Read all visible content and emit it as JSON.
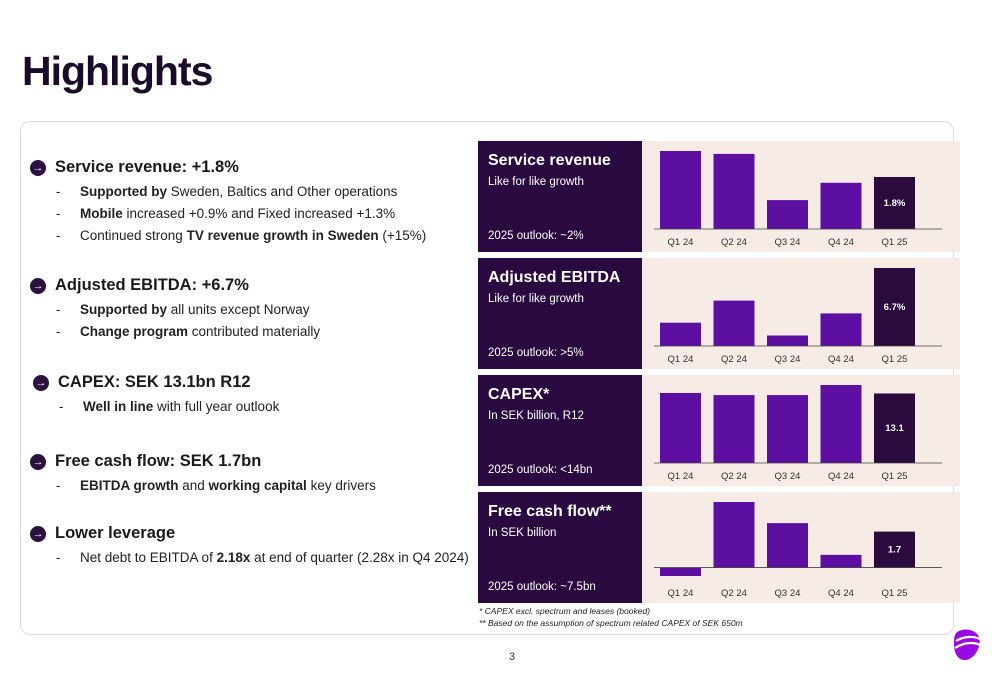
{
  "page": {
    "title": "Highlights",
    "page_number": "3"
  },
  "bullets": [
    {
      "head": "Service revenue: +1.8%",
      "subs": [
        {
          "bold": "Supported by",
          "rest": " Sweden, Baltics and Other operations"
        },
        {
          "bold": "Mobile",
          "rest": " increased +0.9% and Fixed increased +1.3%"
        },
        {
          "pre": "Continued strong ",
          "bold": "TV revenue growth in Sweden",
          "rest": " (+15%)"
        }
      ]
    },
    {
      "head": "Adjusted EBITDA: +6.7%",
      "subs": [
        {
          "bold": "Supported by",
          "rest": " all units except Norway"
        },
        {
          "bold": "Change program",
          "rest": " contributed materially"
        }
      ]
    },
    {
      "head": "CAPEX: SEK 13.1bn R12",
      "subs": [
        {
          "bold": "Well in line",
          "rest": " with full year outlook"
        }
      ]
    },
    {
      "head": "Free cash flow: SEK 1.7bn",
      "subs": [
        {
          "bold": "EBITDA growth",
          "rest": " and ",
          "bold2": "working capital",
          "rest2": " key drivers"
        }
      ]
    },
    {
      "head": "Lower leverage",
      "subs": [
        {
          "pre": "Net debt to EBITDA of ",
          "bold": "2.18x",
          "rest": " at end of quarter (2.28x in Q4 2024)"
        }
      ]
    }
  ],
  "chart_data": [
    {
      "type": "bar",
      "title": "Service revenue",
      "subtitle": "Like for like growth",
      "outlook": "2025 outlook: ~2%",
      "categories": [
        "Q1 24",
        "Q2 24",
        "Q3 24",
        "Q4 24",
        "Q1 25"
      ],
      "values": [
        2.7,
        2.6,
        1.0,
        1.6,
        1.8
      ],
      "data_labels": [
        "",
        "",
        "",
        "",
        "1.8%"
      ]
    },
    {
      "type": "bar",
      "title": "Adjusted EBITDA",
      "subtitle": "Like for like growth",
      "outlook": "2025 outlook: >5%",
      "categories": [
        "Q1 24",
        "Q2 24",
        "Q3 24",
        "Q4 24",
        "Q1 25"
      ],
      "values": [
        2.0,
        3.9,
        0.9,
        2.8,
        6.7
      ],
      "data_labels": [
        "",
        "",
        "",
        "",
        "6.7%"
      ]
    },
    {
      "type": "bar",
      "title": "CAPEX*",
      "subtitle": "In SEK billion, R12",
      "outlook": "2025 outlook: <14bn",
      "categories": [
        "Q1 24",
        "Q2 24",
        "Q3 24",
        "Q4 24",
        "Q1 25"
      ],
      "values": [
        13.2,
        12.8,
        12.8,
        14.7,
        13.1
      ],
      "data_labels": [
        "",
        "",
        "",
        "",
        "13.1"
      ]
    },
    {
      "type": "bar",
      "title": "Free cash flow**",
      "subtitle": "In SEK billion",
      "outlook": "2025 outlook: ~7.5bn",
      "categories": [
        "Q1 24",
        "Q2 24",
        "Q3 24",
        "Q4 24",
        "Q1 25"
      ],
      "values": [
        -0.4,
        3.1,
        2.1,
        0.6,
        1.7
      ],
      "data_labels": [
        "",
        "",
        "",
        "",
        "1.7"
      ]
    }
  ],
  "footnotes": [
    "* CAPEX excl. spectrum and leases (booked)",
    "** Based on the assumption of spectrum related CAPEX of SEK 650m"
  ],
  "colors": {
    "dark_panel": "#29093f",
    "bar": "#5c0fa0",
    "bar_last": "#2b0a3e",
    "panel_bg": "#f6ebe5",
    "brand": "#990ae3"
  },
  "icons": {
    "bullet": "arrow-circle-icon",
    "logo": "telia-pebble-logo"
  }
}
